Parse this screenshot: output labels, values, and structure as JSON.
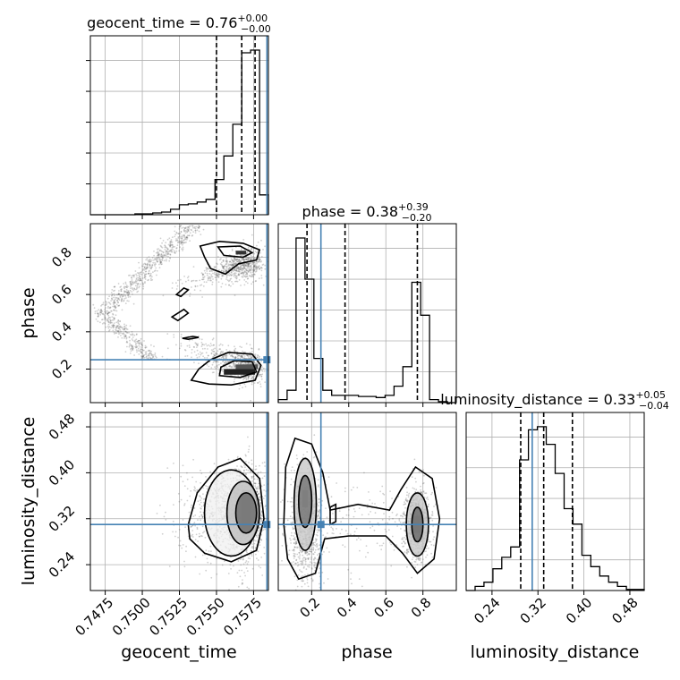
{
  "chart_data": {
    "type": "corner",
    "parameters": [
      "geocent_time",
      "phase",
      "luminosity_distance"
    ],
    "titles": [
      {
        "param": "geocent_time",
        "text": "geocent_time = 0.76",
        "sup": "+0.00",
        "sub": "−0.00"
      },
      {
        "param": "phase",
        "text": "phase = 0.38",
        "sup": "+0.39",
        "sub": "−0.20"
      },
      {
        "param": "luminosity_distance",
        "text": "luminosity_distance = 0.33",
        "sup": "+0.05",
        "sub": "−0.04"
      }
    ],
    "ranges": {
      "geocent_time": [
        0.7465,
        0.7585
      ],
      "phase": [
        0.02,
        0.98
      ],
      "luminosity_distance": [
        0.195,
        0.505
      ]
    },
    "ticks": {
      "geocent_time": {
        "values": [
          0.7475,
          0.75,
          0.7525,
          0.755,
          0.7575
        ],
        "labels": [
          "0.7475",
          "0.7500",
          "0.7525",
          "0.7550",
          "0.7575"
        ]
      },
      "phase": {
        "values": [
          0.2,
          0.4,
          0.6,
          0.8
        ],
        "labels": [
          "0.2",
          "0.4",
          "0.6",
          "0.8"
        ]
      },
      "luminosity_distance": {
        "values": [
          0.24,
          0.32,
          0.4,
          0.48
        ],
        "labels": [
          "0.24",
          "0.32",
          "0.40",
          "0.48"
        ]
      }
    },
    "truths": {
      "geocent_time": 0.7584,
      "phase": 0.25,
      "luminosity_distance": 0.31
    },
    "quantiles": {
      "geocent_time": [
        0.755,
        0.7567,
        0.7576
      ],
      "phase": [
        0.175,
        0.38,
        0.77
      ],
      "luminosity_distance": [
        0.29,
        0.33,
        0.38
      ]
    },
    "histograms": {
      "geocent_time": {
        "edges": [
          0.7465,
          0.7471,
          0.7477,
          0.7483,
          0.7489,
          0.7495,
          0.7501,
          0.7507,
          0.7513,
          0.7519,
          0.7525,
          0.7531,
          0.7537,
          0.7543,
          0.7549,
          0.7555,
          0.7561,
          0.7567,
          0.7573,
          0.7579,
          0.7585
        ],
        "counts": [
          0,
          0,
          0,
          0,
          0,
          1,
          1,
          2,
          3,
          6,
          11,
          12,
          14,
          17,
          39,
          65,
          100,
          179,
          182,
          22
        ]
      },
      "phase": {
        "edges": [
          0.02,
          0.068,
          0.116,
          0.164,
          0.212,
          0.26,
          0.308,
          0.356,
          0.404,
          0.452,
          0.5,
          0.548,
          0.596,
          0.644,
          0.692,
          0.74,
          0.788,
          0.836,
          0.884,
          0.932,
          0.98
        ],
        "counts": [
          3,
          12,
          160,
          120,
          43,
          12,
          7,
          7,
          7,
          6,
          6,
          5,
          7,
          16,
          35,
          117,
          85,
          3,
          1,
          0
        ]
      },
      "luminosity_distance": {
        "edges": [
          0.195,
          0.2105,
          0.226,
          0.2415,
          0.257,
          0.2725,
          0.288,
          0.3035,
          0.319,
          0.3345,
          0.35,
          0.3655,
          0.381,
          0.3965,
          0.412,
          0.4275,
          0.443,
          0.4585,
          0.474,
          0.4895,
          0.505
        ],
        "counts": [
          0,
          4,
          8,
          21,
          32,
          42,
          126,
          155,
          158,
          141,
          113,
          79,
          64,
          34,
          23,
          14,
          8,
          4,
          1,
          1
        ]
      }
    }
  }
}
